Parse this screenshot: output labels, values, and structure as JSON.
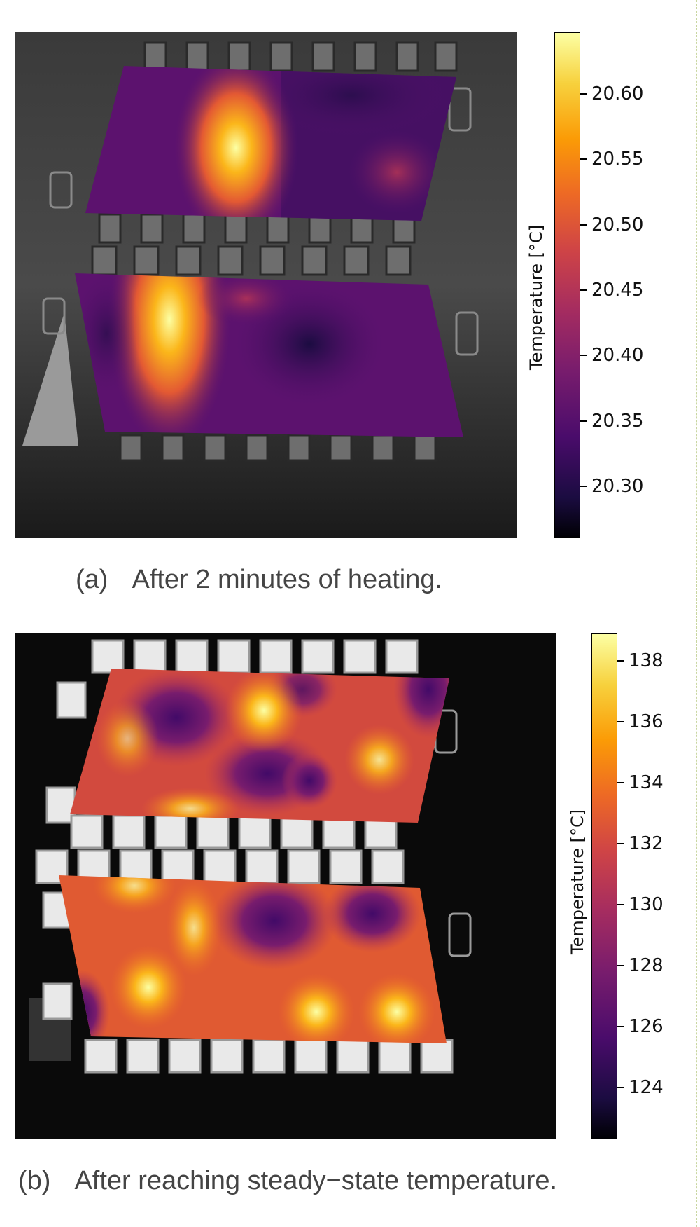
{
  "panels": [
    {
      "id": "a",
      "caption_tag": "(a)",
      "caption_text": "After 2 minutes of heating.",
      "colorbar": {
        "title": "Temperature [°C]",
        "ticks": [
          "20.60",
          "20.55",
          "20.50",
          "20.45",
          "20.40",
          "20.35",
          "20.30"
        ],
        "range": [
          20.26,
          20.645
        ],
        "colormap": "inferno"
      }
    },
    {
      "id": "b",
      "caption_tag": "(b)",
      "caption_text": "After reaching steady−state temperature.",
      "colorbar": {
        "title": "Temperature [°C]",
        "ticks": [
          "138",
          "136",
          "134",
          "132",
          "130",
          "128",
          "126",
          "124"
        ],
        "range": [
          122.3,
          138.9
        ],
        "colormap": "inferno"
      }
    }
  ],
  "colors": {
    "inferno_dark": "#000004",
    "inferno_purple": "#57106e",
    "inferno_red": "#bc3754",
    "inferno_orange": "#f98e09",
    "inferno_yellow": "#fcffa4"
  }
}
